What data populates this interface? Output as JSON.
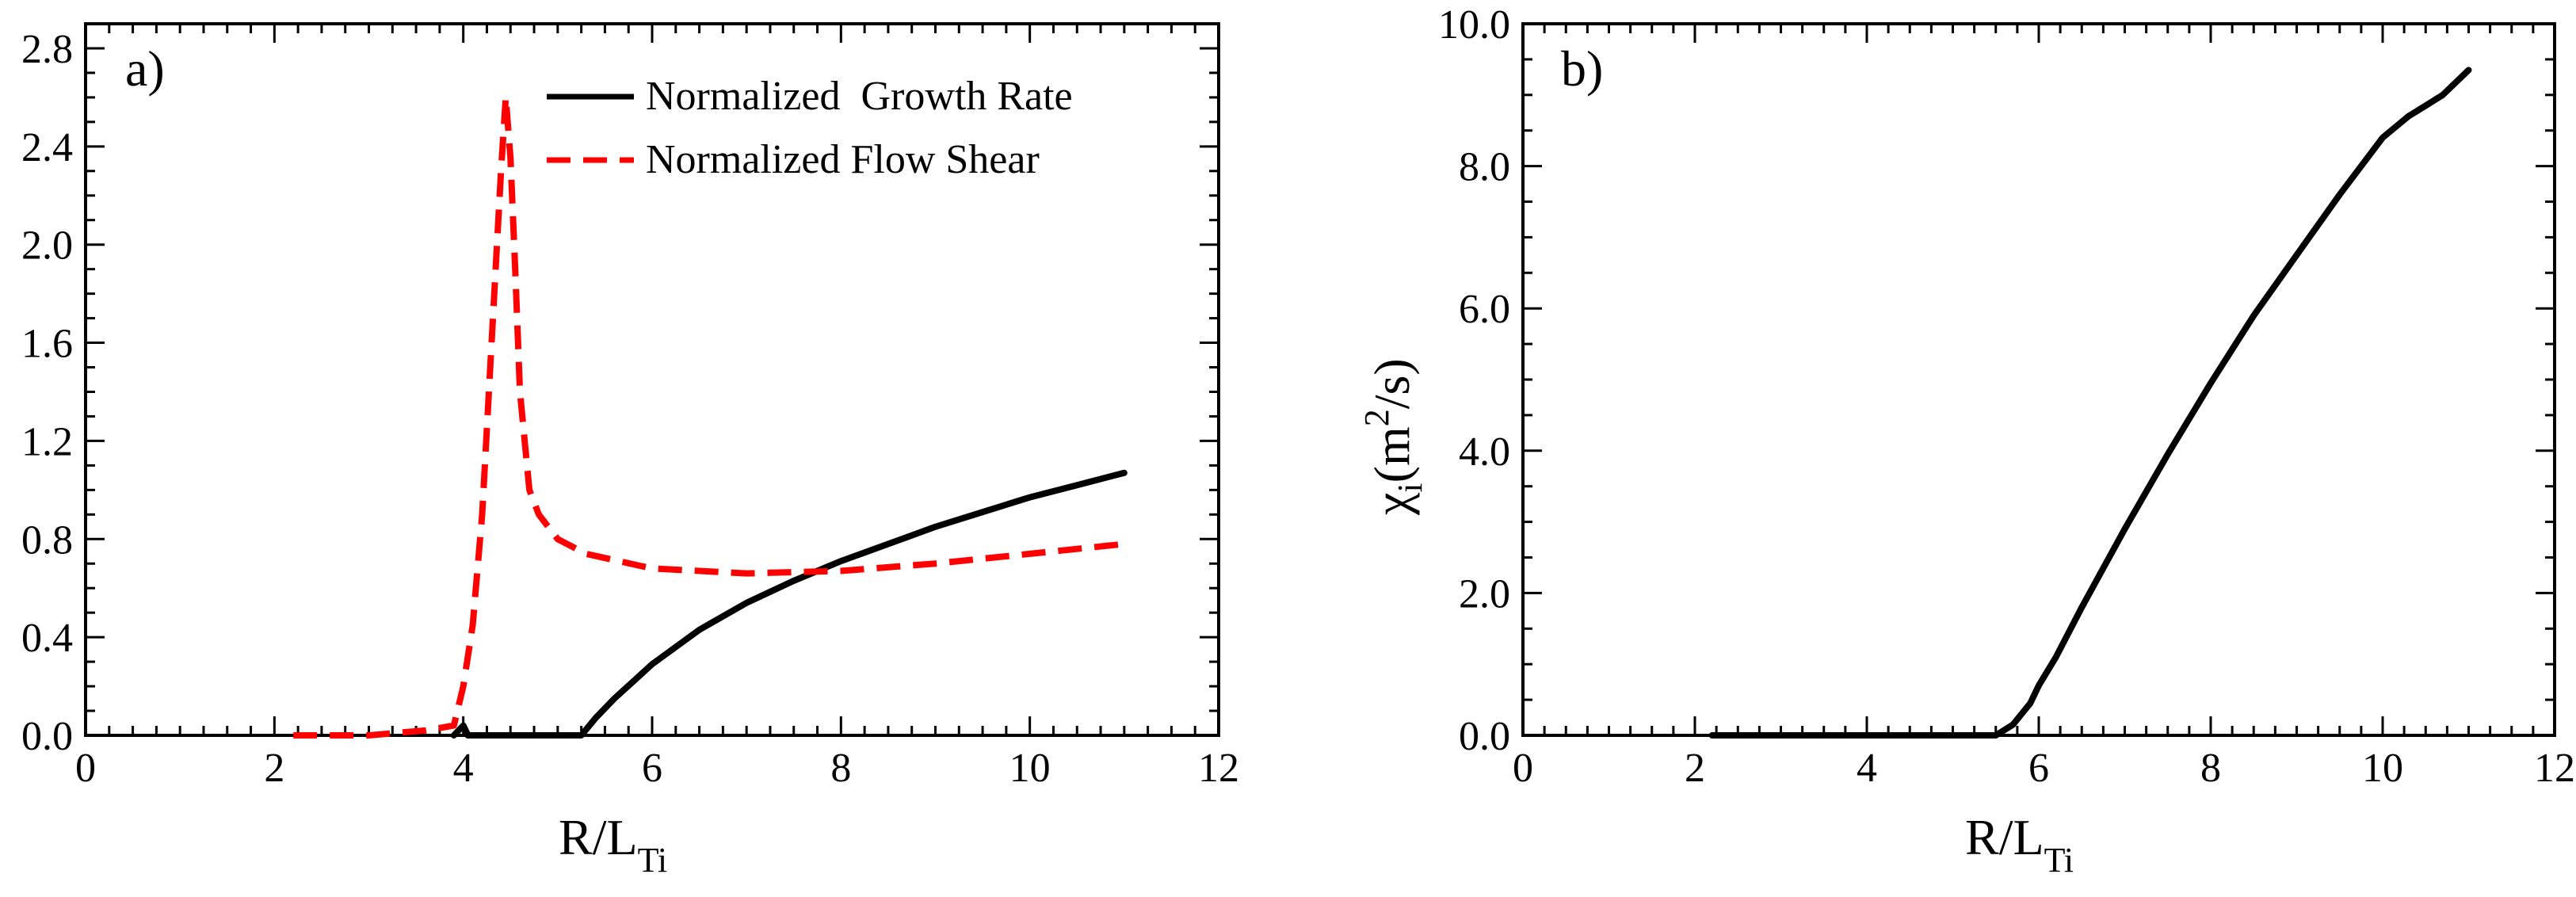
{
  "chart_data": [
    {
      "type": "line",
      "panel_label": "a)",
      "title": "",
      "xlabel": "R/L",
      "xlabel_sub": "Ti",
      "ylabel": "",
      "xlim": [
        0,
        12
      ],
      "ylim": [
        0,
        2.9
      ],
      "x_ticks": [
        0,
        2,
        4,
        6,
        8,
        10,
        12
      ],
      "x_tick_labels": [
        "0",
        "2",
        "4",
        "6",
        "8",
        "10",
        "12"
      ],
      "y_ticks": [
        0,
        0.4,
        0.8,
        1.2,
        1.6,
        2.0,
        2.4,
        2.8
      ],
      "y_tick_labels": [
        "0.0",
        "0.4",
        "0.8",
        "1.2",
        "1.6",
        "2.0",
        "2.4",
        "2.8"
      ],
      "legend_position": "top-right",
      "series": [
        {
          "name": "Normalized  Growth Rate",
          "color": "#000000",
          "style": "solid",
          "x": [
            3.9,
            4.0,
            4.05,
            5.25,
            5.4,
            5.6,
            5.8,
            6.0,
            6.5,
            7.0,
            7.5,
            8.0,
            8.5,
            9.0,
            9.5,
            10.0,
            10.5,
            11.0
          ],
          "y": [
            0.0,
            0.04,
            0.0,
            0.0,
            0.07,
            0.15,
            0.22,
            0.29,
            0.43,
            0.54,
            0.63,
            0.71,
            0.78,
            0.85,
            0.91,
            0.97,
            1.02,
            1.07
          ]
        },
        {
          "name": "Normalized Flow Shear",
          "color": "#ff0000",
          "style": "dashed",
          "x": [
            2.2,
            3.0,
            3.6,
            3.9,
            4.0,
            4.1,
            4.2,
            4.3,
            4.4,
            4.45,
            4.5,
            4.55,
            4.6,
            4.7,
            4.8,
            5.0,
            5.3,
            6.0,
            7.0,
            8.0,
            9.0,
            10.0,
            11.0
          ],
          "y": [
            0.0,
            0.0,
            0.02,
            0.04,
            0.2,
            0.45,
            0.9,
            1.6,
            2.3,
            2.6,
            2.35,
            1.9,
            1.4,
            1.0,
            0.9,
            0.8,
            0.74,
            0.68,
            0.66,
            0.67,
            0.7,
            0.74,
            0.78
          ]
        }
      ]
    },
    {
      "type": "line",
      "panel_label": "b)",
      "title": "",
      "xlabel": "R/L",
      "xlabel_sub": "Ti",
      "ylabel": "χ",
      "ylabel_sub": "i",
      "ylabel_units_pre": "(m",
      "ylabel_units_sup": "2",
      "ylabel_units_post": "/s)",
      "xlim": [
        0,
        12
      ],
      "ylim": [
        0,
        10
      ],
      "x_ticks": [
        0,
        2,
        4,
        6,
        8,
        10,
        12
      ],
      "x_tick_labels": [
        "0",
        "2",
        "4",
        "6",
        "8",
        "10",
        "12"
      ],
      "y_ticks": [
        0,
        2,
        4,
        6,
        8,
        10
      ],
      "y_tick_labels": [
        "0.0",
        "2.0",
        "4.0",
        "6.0",
        "8.0",
        "10.0"
      ],
      "series": [
        {
          "name": "chi_i",
          "color": "#000000",
          "style": "solid",
          "x": [
            2.2,
            3.0,
            4.0,
            5.0,
            5.5,
            5.7,
            5.9,
            6.0,
            6.2,
            6.5,
            7.0,
            7.5,
            8.0,
            8.5,
            9.0,
            9.5,
            10.0,
            10.3,
            10.5,
            10.7,
            11.0
          ],
          "y": [
            0.0,
            0.0,
            0.0,
            0.0,
            0.0,
            0.15,
            0.45,
            0.7,
            1.1,
            1.8,
            2.9,
            3.95,
            4.95,
            5.9,
            6.75,
            7.6,
            8.4,
            8.7,
            8.85,
            9.0,
            9.35
          ]
        }
      ]
    }
  ]
}
